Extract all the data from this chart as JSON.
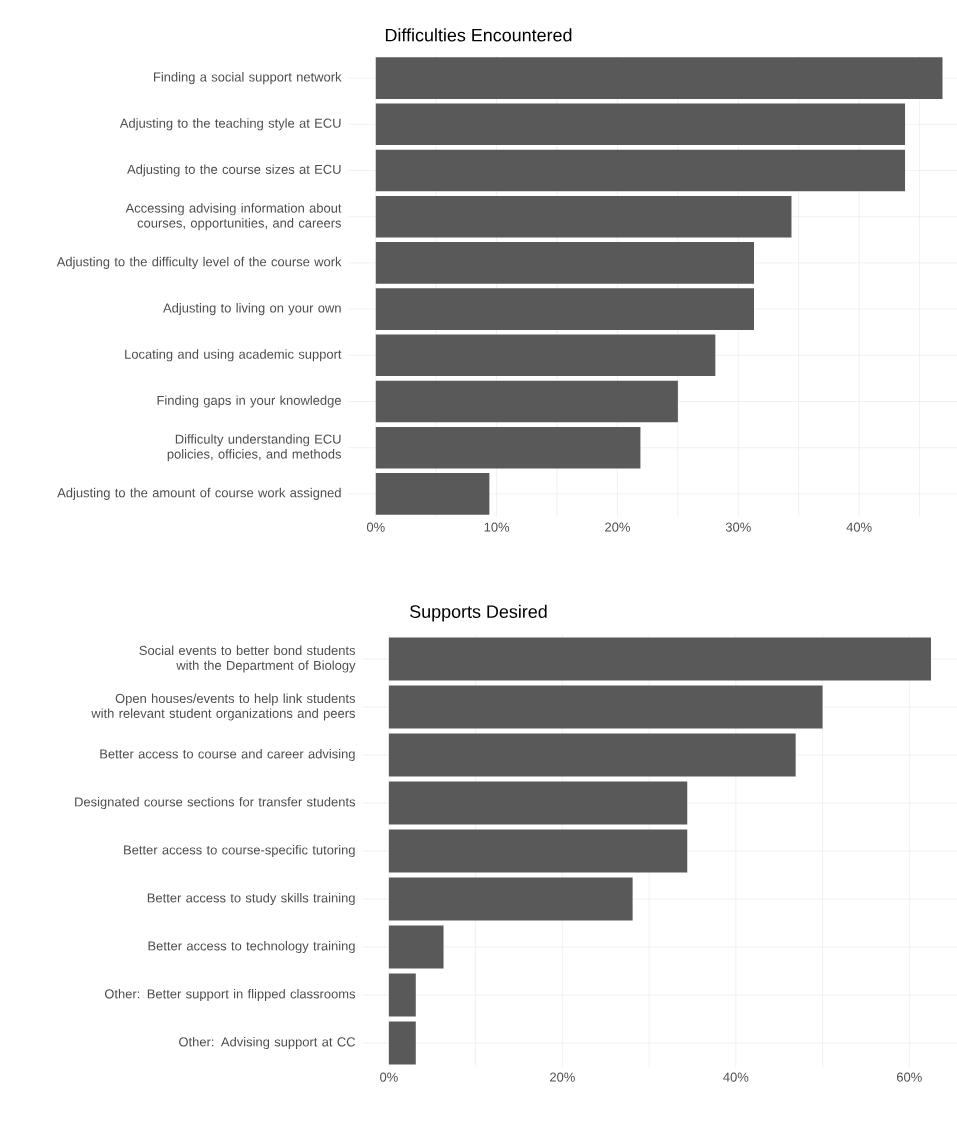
{
  "chart_data": [
    {
      "type": "bar",
      "orientation": "horizontal",
      "title": "Difficulties Encountered",
      "categories": [
        "Finding a social support network",
        "Adjusting to the teaching style at ECU",
        "Adjusting to the course sizes at ECU",
        "Accessing advising information about courses, opportunities, and careers",
        "Adjusting to the difficulty level of the course work",
        "Adjusting to living on your own",
        "Locating and using academic support",
        "Finding gaps in your knowledge",
        "Difficulty understanding ECU policies, officies, and methods",
        "Adjusting to the amount of course work assigned"
      ],
      "values": [
        46.9,
        43.8,
        43.8,
        34.4,
        31.3,
        31.3,
        28.1,
        25.0,
        21.9,
        9.4
      ],
      "color": "#595959",
      "xlim": [
        -2.3,
        48.1
      ],
      "xticks": [
        {
          "value": 0,
          "label": "0%"
        },
        {
          "value": 5,
          "label": null
        },
        {
          "value": 10,
          "label": "10%"
        },
        {
          "value": 15,
          "label": null
        },
        {
          "value": 20,
          "label": "20%"
        },
        {
          "value": 25,
          "label": null
        },
        {
          "value": 30,
          "label": "30%"
        },
        {
          "value": 35,
          "label": null
        },
        {
          "value": 40,
          "label": "40%"
        },
        {
          "value": 45,
          "label": null
        }
      ],
      "grid": true
    },
    {
      "type": "bar",
      "orientation": "horizontal",
      "title": "Supports Desired",
      "categories": [
        "Social events to better bond students with the Department of Biology",
        "Open houses/events to help link students with relevant student organizations and peers",
        "Better access to course and career advising",
        "Designated course sections for transfer students",
        "Better access to course-specific tutoring",
        "Better access to study skills training",
        "Better access to technology training",
        "Other: Better support in flipped classrooms",
        "Other: Advising support at CC"
      ],
      "values": [
        62.5,
        50.0,
        46.9,
        34.4,
        34.4,
        28.1,
        6.3,
        3.1,
        3.1
      ],
      "color": "#595959",
      "xlim": [
        -3.1,
        65.5
      ],
      "xticks": [
        {
          "value": 0,
          "label": "0%"
        },
        {
          "value": 10,
          "label": null
        },
        {
          "value": 20,
          "label": "20%"
        },
        {
          "value": 30,
          "label": null
        },
        {
          "value": 40,
          "label": "40%"
        },
        {
          "value": 50,
          "label": null
        },
        {
          "value": 60,
          "label": "60%"
        }
      ],
      "grid": true
    }
  ]
}
